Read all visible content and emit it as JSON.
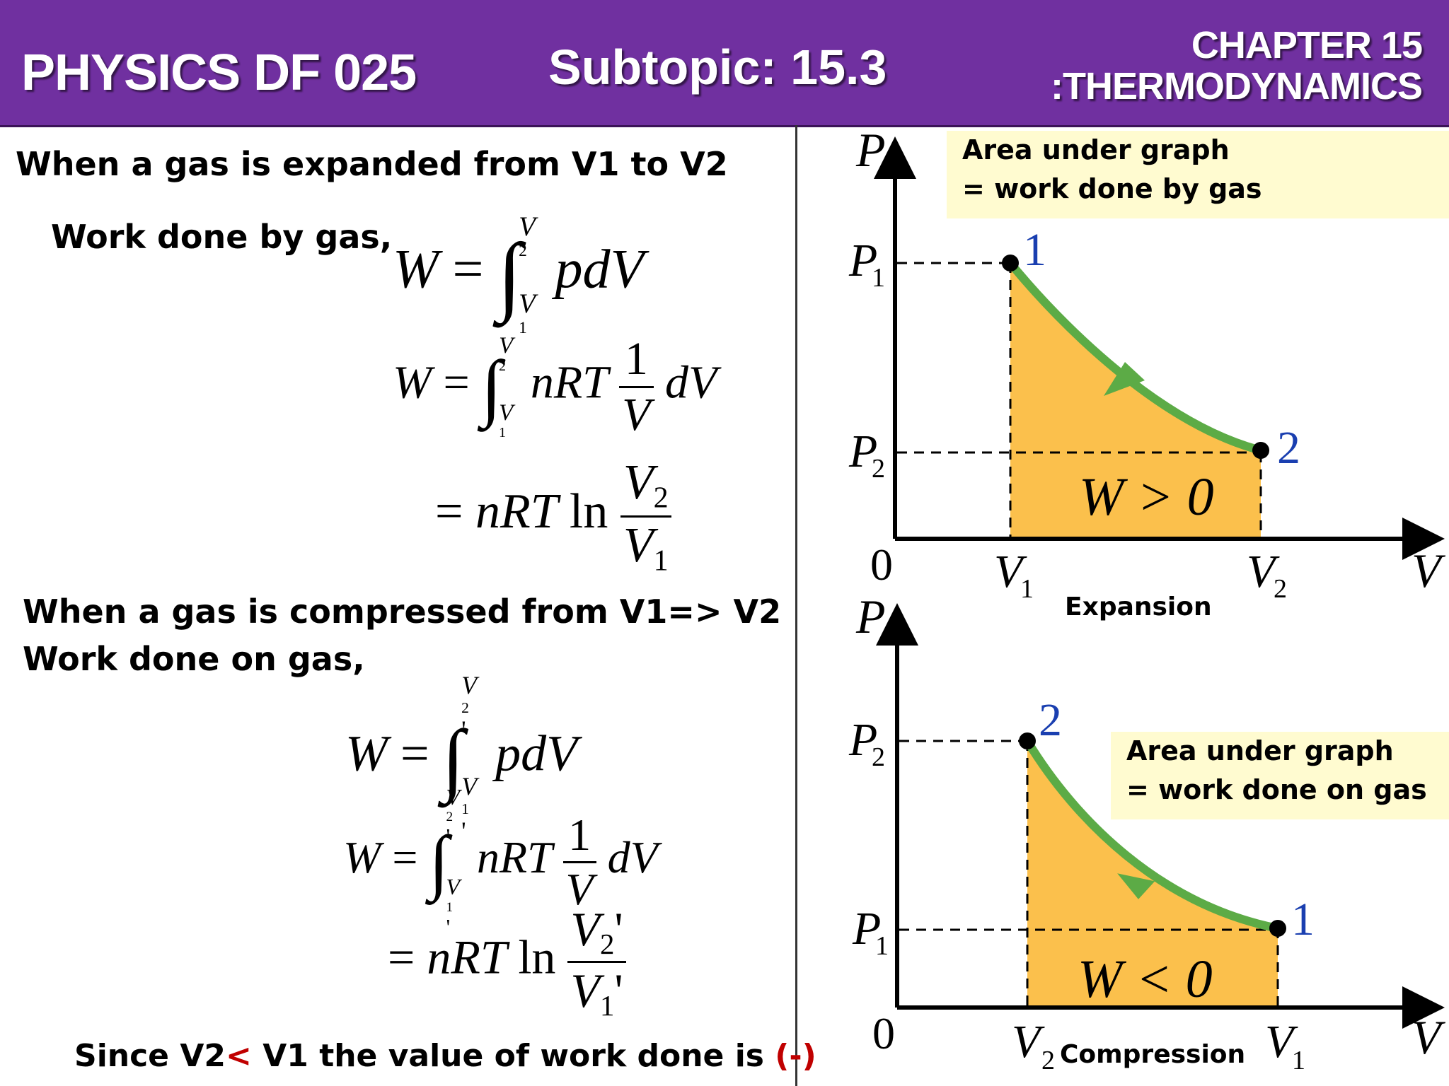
{
  "header": {
    "course": "PHYSICS DF 025",
    "subtopic": "Subtopic: 15.3",
    "chapter_line1": "CHAPTER 15",
    "chapter_line2": ":THERMODYNAMICS"
  },
  "colors": {
    "header_bg": "#7030a0",
    "area_fill": "#fbc04c",
    "curve": "#5cab46",
    "point_label": "#1a3fb0",
    "note_bg": "#fffbd0",
    "emphasis": "#c00000"
  },
  "left": {
    "expansion_heading": "When a gas is expanded from V1 to V2",
    "work_by_gas_label": "Work done by gas,",
    "compression_heading": "When a gas is compressed from V1=> V2",
    "work_on_gas_label": "Work done on gas,",
    "conclusion_part1": "Since V2",
    "conclusion_lt": "<",
    "conclusion_part2": " V1 the value of work done is ",
    "conclusion_sign": "(-)"
  },
  "equations": {
    "W": "W",
    "eq": "=",
    "integral": "∫",
    "pdV": "pdV",
    "nRT": "nRT",
    "one": "1",
    "V": "V",
    "dV": "dV",
    "ln": "ln",
    "V1": "V",
    "sub1": "1",
    "sub2": "2",
    "prime": "'"
  },
  "graphs": {
    "expansion": {
      "note_line1": "Area under graph",
      "note_line2": "= work done by gas",
      "y_axis": "P",
      "x_axis": "V",
      "origin": "0",
      "p_high": "P",
      "p_high_sub": "1",
      "p_low": "P",
      "p_low_sub": "2",
      "v_left": "V",
      "v_left_sub": "1",
      "v_right": "V",
      "v_right_sub": "2",
      "start_point": "1",
      "end_point": "2",
      "sign_label": "W > 0",
      "caption": "Expansion"
    },
    "compression": {
      "note_line1": "Area under graph",
      "note_line2": "= work done on gas",
      "y_axis": "P",
      "x_axis": "V",
      "origin": "0",
      "p_high": "P",
      "p_high_sub": "2",
      "p_low": "P",
      "p_low_sub": "1",
      "v_left": "V",
      "v_left_sub": "2",
      "v_right": "V",
      "v_right_sub": "1",
      "start_point": "1",
      "end_point": "2",
      "sign_label": "W < 0",
      "caption": "Compression"
    }
  }
}
